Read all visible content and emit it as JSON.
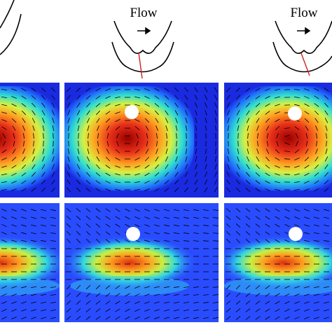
{
  "diagrams": [
    {
      "label": "Flow"
    },
    {
      "label": "Flow"
    }
  ]
}
